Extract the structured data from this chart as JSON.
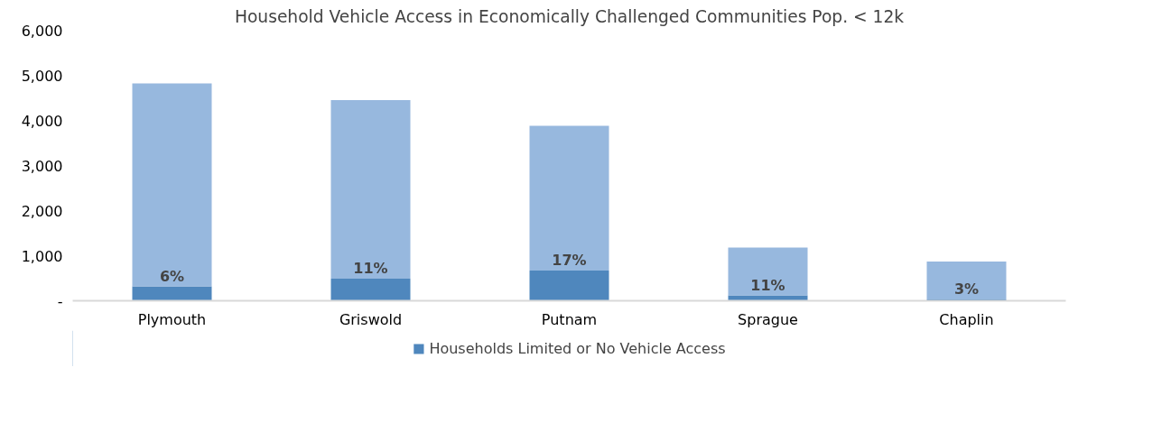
{
  "chart_data": {
    "type": "bar",
    "title": "Household Vehicle Access in Economically Challenged Communities Pop. < 12k",
    "categories": [
      "Plymouth",
      "Griswold",
      "Putnam",
      "Sprague",
      "Chaplin"
    ],
    "stacked": true,
    "series": [
      {
        "name": "Households Limited or No Vehicle Access",
        "color": "#4f87bd",
        "values": [
          320,
          490,
          670,
          120,
          30
        ]
      },
      {
        "color": "#97b8de",
        "values": [
          4500,
          3960,
          3210,
          1060,
          840
        ]
      }
    ],
    "annotations": [
      {
        "text": "6%",
        "x": "Plymouth",
        "y": 320
      },
      {
        "text": "11%",
        "x": "Griswold",
        "y": 490
      },
      {
        "text": "17%",
        "x": "Putnam",
        "y": 670
      },
      {
        "text": "11%",
        "x": "Sprague",
        "y": 120
      },
      {
        "text": "3%",
        "x": "Chaplin",
        "y": 30
      }
    ],
    "ylim": [
      0,
      6000
    ],
    "yticks": [
      {
        "value": 0,
        "label": "-"
      },
      {
        "value": 1000,
        "label": "1,000"
      },
      {
        "value": 2000,
        "label": "2,000"
      },
      {
        "value": 3000,
        "label": "3,000"
      },
      {
        "value": 4000,
        "label": "4,000"
      },
      {
        "value": 5000,
        "label": "5,000"
      },
      {
        "value": 6000,
        "label": "6,000"
      }
    ],
    "legend": "bottom"
  }
}
